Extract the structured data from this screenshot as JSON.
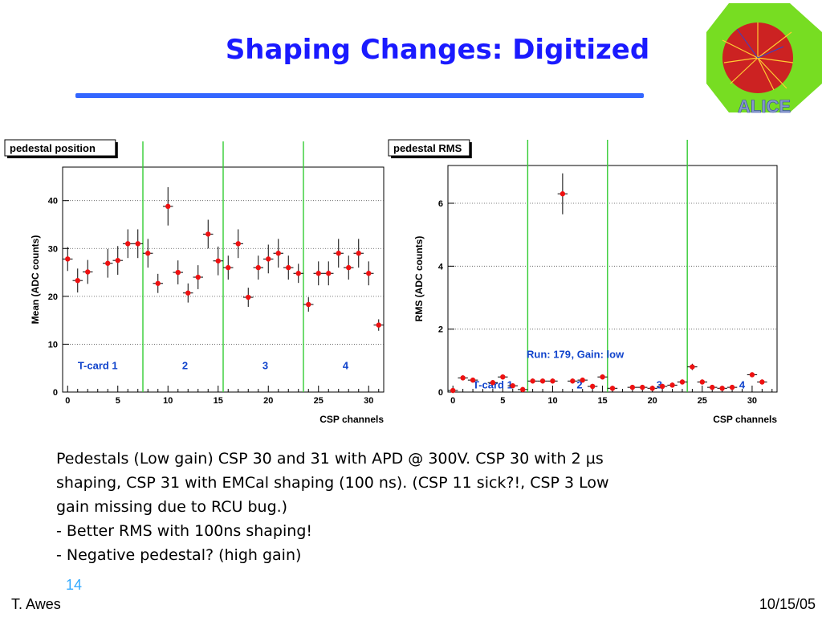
{
  "slide": {
    "title": "Shaping Changes: Digitized",
    "logo_text": "ALICE",
    "body_lines": [
      "Pedestals (Low gain) CSP 30 and 31 with APD @ 300V. CSP 30 with 2 µs",
      "shaping, CSP 31 with EMCal shaping (100 ns). (CSP 11 sick?!, CSP 3 Low",
      "gain missing due to RCU bug.)",
      "- Better RMS with 100ns shaping!",
      "- Negative pedestal? (high gain)"
    ],
    "slide_number": "14",
    "author": "T. Awes",
    "date": "10/15/05",
    "colors": {
      "title": "#1a1aff",
      "rule": "#3366ff",
      "marker": "#ee1111",
      "divider": "#33cc33",
      "annotation": "#1144cc"
    }
  },
  "chart_data": [
    {
      "type": "scatter",
      "title": "pedestal position",
      "xlabel": "CSP channels",
      "ylabel": "Mean (ADC counts)",
      "xlim": [
        -0.5,
        31.5
      ],
      "ylim": [
        0,
        47
      ],
      "xticks": [
        0,
        5,
        10,
        15,
        20,
        25,
        30
      ],
      "yticks": [
        0,
        10,
        20,
        30,
        40
      ],
      "grid": true,
      "dividers": [
        7.5,
        15.5,
        23.5
      ],
      "annotations": [
        {
          "text": "T-card 1",
          "x": 3.0,
          "y": 4.8
        },
        {
          "text": "2",
          "x": 11.7,
          "y": 4.8
        },
        {
          "text": "3",
          "x": 19.7,
          "y": 4.8
        },
        {
          "text": "4",
          "x": 27.7,
          "y": 4.8
        }
      ],
      "x": [
        0,
        1,
        2,
        4,
        5,
        6,
        7,
        8,
        9,
        10,
        11,
        12,
        13,
        14,
        15,
        16,
        17,
        18,
        19,
        20,
        21,
        22,
        23,
        24,
        25,
        26,
        27,
        28,
        29,
        30,
        31
      ],
      "y": [
        27.8,
        23.3,
        25.1,
        26.9,
        27.5,
        31.0,
        31.0,
        29.0,
        22.7,
        38.8,
        25.0,
        20.7,
        24.0,
        33.0,
        27.4,
        26.0,
        31.0,
        19.8,
        26.0,
        27.8,
        29.0,
        26.0,
        24.8,
        18.3,
        24.8,
        24.8,
        29.0,
        26.0,
        29.0,
        24.8,
        14.0
      ],
      "yerr": [
        2.5,
        2.5,
        2.5,
        3.0,
        3.0,
        3.0,
        3.0,
        3.0,
        2.0,
        4.0,
        2.5,
        2.0,
        2.5,
        3.0,
        3.0,
        2.5,
        3.0,
        2.0,
        2.5,
        3.0,
        3.0,
        2.5,
        2.0,
        1.5,
        2.5,
        2.5,
        3.0,
        2.5,
        3.0,
        2.5,
        1.2
      ]
    },
    {
      "type": "scatter",
      "title": "pedestal RMS",
      "xlabel": "CSP channels",
      "ylabel": "RMS (ADC counts)",
      "xlim": [
        -0.5,
        32.5
      ],
      "ylim": [
        0,
        7.2
      ],
      "xticks": [
        0,
        5,
        10,
        15,
        20,
        25,
        30
      ],
      "yticks": [
        0,
        2,
        4,
        6
      ],
      "grid": true,
      "dividers": [
        7.5,
        15.5,
        23.5
      ],
      "annotations": [
        {
          "text": "Run: 179",
          "x": 9.6,
          "y": 1.08
        },
        {
          "text": ", Gain: low",
          "x": 14.5,
          "y": 1.08
        },
        {
          "text": "T-card 1",
          "x": 4.0,
          "y": 0.12
        },
        {
          "text": "2",
          "x": 12.7,
          "y": 0.12
        },
        {
          "text": "3",
          "x": 20.7,
          "y": 0.12
        },
        {
          "text": "4",
          "x": 29.0,
          "y": 0.12
        }
      ],
      "x": [
        0,
        1,
        2,
        4,
        5,
        6,
        7,
        8,
        9,
        10,
        11,
        12,
        13,
        14,
        15,
        16,
        18,
        19,
        20,
        21,
        22,
        23,
        24,
        25,
        26,
        27,
        28,
        30,
        31
      ],
      "y": [
        0.05,
        0.45,
        0.38,
        0.3,
        0.48,
        0.2,
        0.08,
        0.35,
        0.35,
        0.35,
        6.3,
        0.35,
        0.38,
        0.18,
        0.48,
        0.12,
        0.15,
        0.15,
        0.12,
        0.18,
        0.22,
        0.32,
        0.8,
        0.32,
        0.15,
        0.12,
        0.15,
        0.55,
        0.32
      ],
      "yerr": [
        0.08,
        0.08,
        0.08,
        0.08,
        0.08,
        0.08,
        0.08,
        0.08,
        0.08,
        0.08,
        0.65,
        0.08,
        0.08,
        0.08,
        0.08,
        0.08,
        0.08,
        0.08,
        0.08,
        0.08,
        0.08,
        0.08,
        0.1,
        0.08,
        0.08,
        0.08,
        0.08,
        0.08,
        0.08
      ]
    }
  ]
}
